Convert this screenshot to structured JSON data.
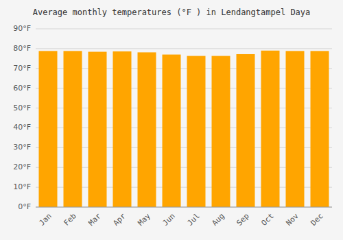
{
  "chart_data": {
    "type": "bar",
    "title": "Average monthly temperatures (°F ) in Lendangtampel Daya",
    "categories": [
      "Jan",
      "Feb",
      "Mar",
      "Apr",
      "May",
      "Jun",
      "Jul",
      "Aug",
      "Sep",
      "Oct",
      "Nov",
      "Dec"
    ],
    "values": [
      78.8,
      78.8,
      78.4,
      78.6,
      78.1,
      77.0,
      76.3,
      76.3,
      77.2,
      79.0,
      78.8,
      78.8
    ],
    "color": "#FFA500",
    "ylim": [
      0,
      90
    ],
    "yticks": [
      {
        "value": 0,
        "label": "0°F"
      },
      {
        "value": 10,
        "label": "10°F"
      },
      {
        "value": 20,
        "label": "20°F"
      },
      {
        "value": 30,
        "label": "30°F"
      },
      {
        "value": 40,
        "label": "40°F"
      },
      {
        "value": 50,
        "label": "50°F"
      },
      {
        "value": 60,
        "label": "60°F"
      },
      {
        "value": 70,
        "label": "70°F"
      },
      {
        "value": 80,
        "label": "80°F"
      },
      {
        "value": 90,
        "label": "90°F"
      }
    ],
    "grid": true
  }
}
